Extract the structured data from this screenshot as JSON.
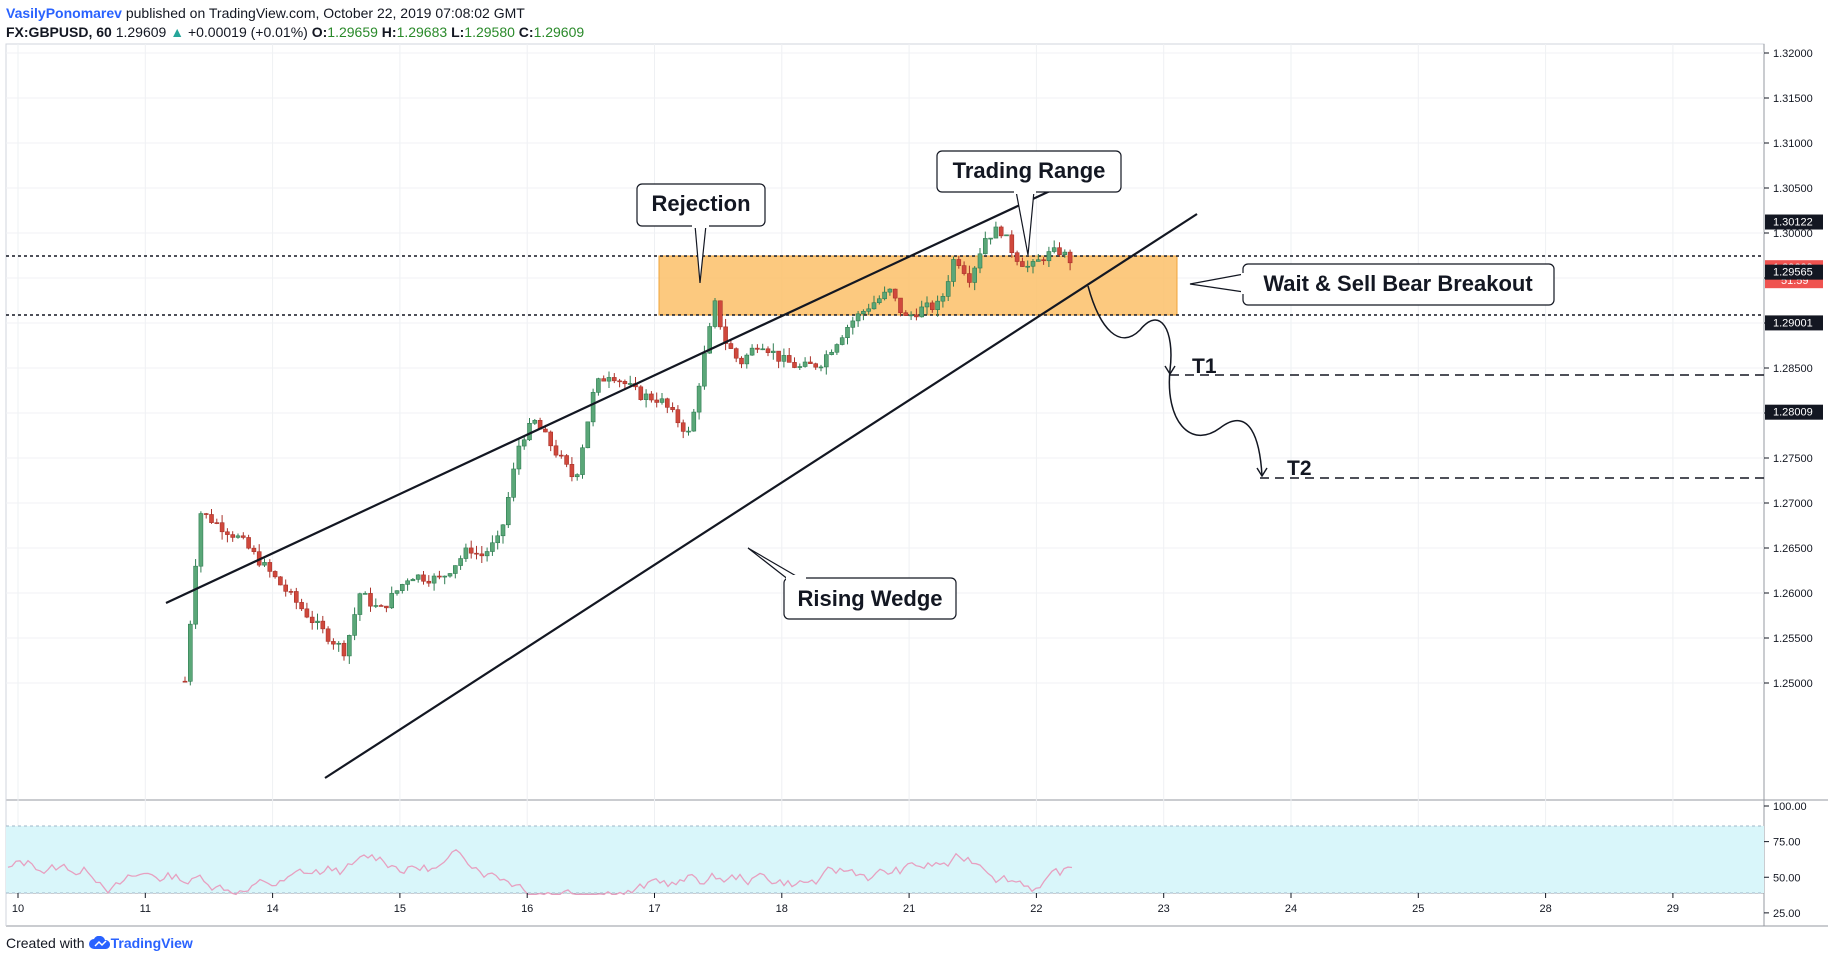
{
  "header": {
    "author": "VasilyPonomarev",
    "published": "published on TradingView.com, October 22, 2019 07:08:02 GMT",
    "symbol": "FX:GBPUSD, 60",
    "last": "1.29609",
    "arrow": "▲",
    "change": "+0.00019 (+0.01%)",
    "o_label": "O:",
    "o": "1.29659",
    "h_label": "H:",
    "h": "1.29683",
    "l_label": "L:",
    "l": "1.29580",
    "c_label": "C:",
    "c": "1.29609"
  },
  "footer": {
    "created_with": "Created with",
    "brand": "TradingView"
  },
  "colors": {
    "up": "#26a69a",
    "down": "#ef5350",
    "up_body": "#4b9e6e",
    "down_body": "#c0392b",
    "range_fill": "#fbbf69",
    "rsi_fill": "#d9f6fa",
    "rsi_line": "#e7a0c0",
    "label_bg": "#131722",
    "price_bg": "#ef5350"
  },
  "chart_data": [
    {
      "type": "candlestick",
      "symbol": "FX:GBPUSD",
      "interval": "60",
      "x_ticks": [
        "10",
        "11",
        "14",
        "15",
        "16",
        "17",
        "18",
        "21",
        "22",
        "23",
        "24",
        "25",
        "28",
        "29"
      ],
      "y_ticks": [
        "1.32000",
        "1.31500",
        "1.31000",
        "1.30500",
        "1.30000",
        "1.29500",
        "1.29000",
        "1.28500",
        "1.28000",
        "1.27500",
        "1.27000",
        "1.26500",
        "1.26000",
        "1.25500",
        "1.25000"
      ],
      "ylim": [
        1.2498,
        1.3214
      ],
      "price_labels": [
        {
          "value": "1.30122",
          "y": 1.30122
        },
        {
          "value": "1.29609",
          "y": 1.29609,
          "countdown": "51:59"
        },
        {
          "value": "1.29565",
          "y": 1.29565
        },
        {
          "value": "1.29001",
          "y": 1.29001
        },
        {
          "value": "1.28009",
          "y": 1.28009
        }
      ],
      "annotations": [
        {
          "text": "Rejection"
        },
        {
          "text": "Trading Range"
        },
        {
          "text": "Wait & Sell Bear Breakout"
        },
        {
          "text": "Rising Wedge"
        },
        {
          "text": "T1",
          "price": 1.29001
        },
        {
          "text": "T2",
          "price": 1.28009
        }
      ],
      "range_zone": [
        1.29565,
        1.30122
      ]
    },
    {
      "type": "line",
      "name": "RSI",
      "y_ticks": [
        "100.00",
        "75.00",
        "50.00",
        "25.00"
      ],
      "ylim": [
        20,
        100
      ],
      "bands": [
        30,
        70
      ]
    }
  ]
}
